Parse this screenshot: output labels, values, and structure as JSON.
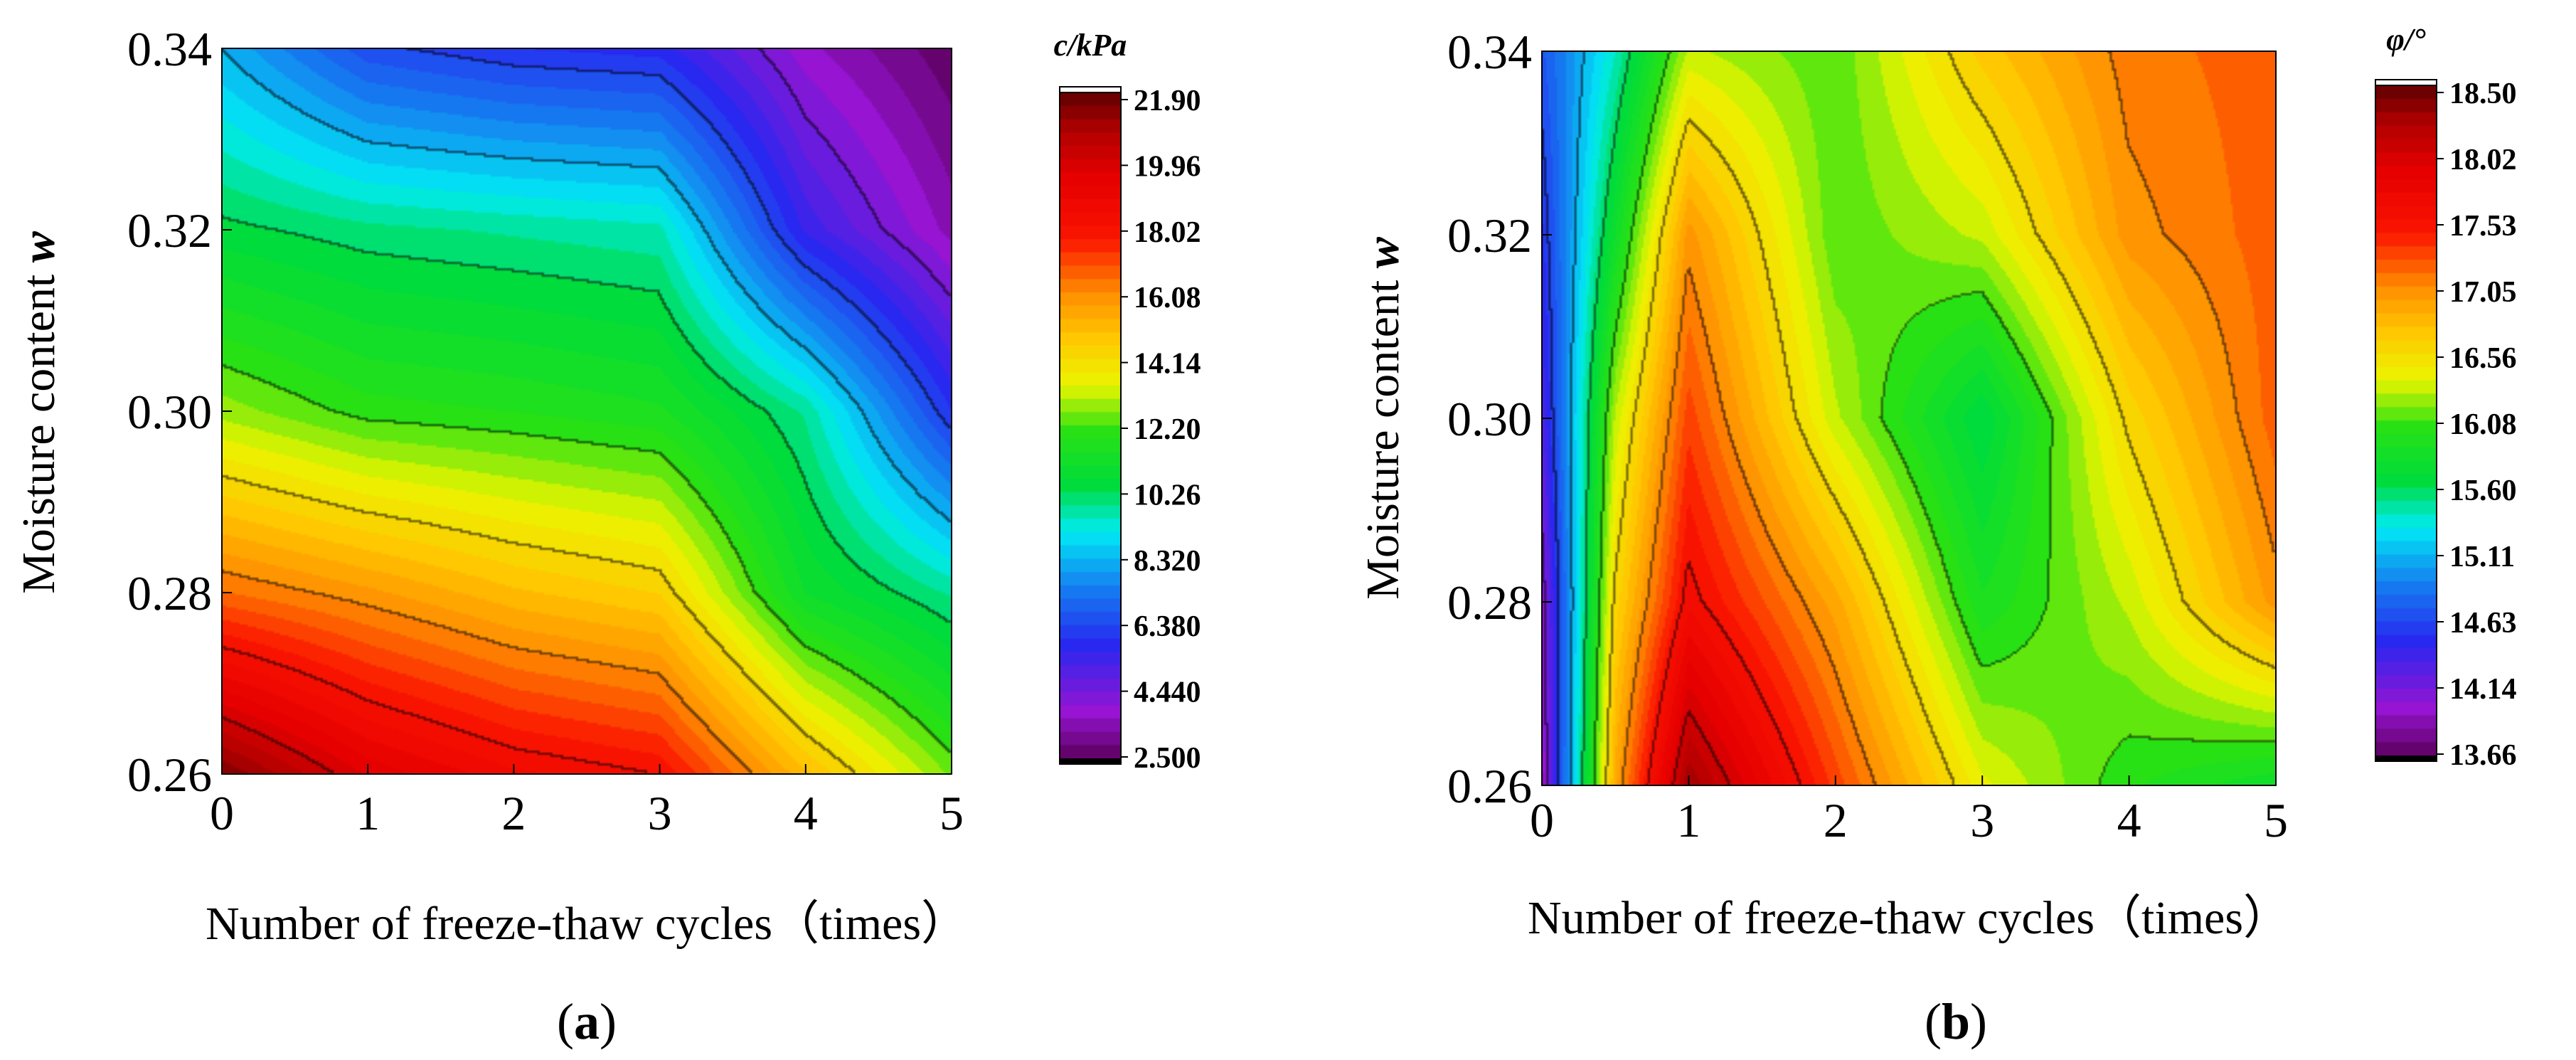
{
  "chart_data": [
    {
      "type": "heatmap",
      "panel_label": "a",
      "xlabel": "Number of freeze-thaw cycles（times）",
      "ylabel": "Moisture content",
      "ylabel_var": "w",
      "colorbar_title": "c/kPa",
      "x_ticks": [
        "0",
        "1",
        "2",
        "3",
        "4",
        "5"
      ],
      "y_ticks": [
        "0.26",
        "0.28",
        "0.30",
        "0.32",
        "0.34"
      ],
      "xlim": [
        0,
        5
      ],
      "ylim": [
        0.26,
        0.34
      ],
      "colorbar_ticks": [
        "21.90",
        "19.96",
        "18.02",
        "16.08",
        "14.14",
        "12.20",
        "10.26",
        "8.320",
        "6.380",
        "4.440",
        "2.500"
      ],
      "zlim": [
        2.5,
        21.9
      ],
      "x": [
        0,
        1,
        2,
        3,
        4,
        5
      ],
      "y": [
        0.26,
        0.28,
        0.3,
        0.32,
        0.34
      ],
      "z": [
        [
          21.5,
          19.5,
          18.5,
          18.0,
          15.0,
          12.5
        ],
        [
          16.5,
          15.8,
          15.0,
          14.5,
          11.0,
          9.8
        ],
        [
          12.8,
          12.0,
          11.8,
          11.5,
          9.8,
          6.0
        ],
        [
          10.4,
          10.0,
          9.8,
          9.6,
          5.5,
          3.5
        ],
        [
          8.3,
          6.5,
          6.0,
          5.8,
          3.8,
          2.6
        ]
      ]
    },
    {
      "type": "heatmap",
      "panel_label": "b",
      "xlabel": "Number of freeze-thaw cycles（times）",
      "ylabel": "Moisture content",
      "ylabel_var": "w",
      "colorbar_title": "φ/°",
      "x_ticks": [
        "0",
        "1",
        "2",
        "3",
        "4",
        "5"
      ],
      "y_ticks": [
        "0.26",
        "0.28",
        "0.30",
        "0.32",
        "0.34"
      ],
      "xlim": [
        0,
        5
      ],
      "ylim": [
        0.26,
        0.34
      ],
      "colorbar_ticks": [
        "18.50",
        "18.02",
        "17.53",
        "17.05",
        "16.56",
        "16.08",
        "15.60",
        "15.11",
        "14.63",
        "14.14",
        "13.66"
      ],
      "zlim": [
        13.66,
        18.5
      ],
      "x": [
        0,
        0.5,
        1,
        2,
        3,
        4,
        5
      ],
      "y": [
        0.26,
        0.28,
        0.3,
        0.32,
        0.34
      ],
      "z": [
        [
          13.9,
          16.9,
          18.3,
          17.3,
          16.4,
          16.0,
          15.8
        ],
        [
          14.0,
          16.6,
          17.6,
          16.9,
          15.9,
          16.3,
          17.0
        ],
        [
          14.3,
          16.3,
          17.3,
          16.3,
          15.6,
          16.6,
          17.2
        ],
        [
          14.5,
          15.8,
          17.0,
          16.1,
          16.3,
          17.0,
          17.2
        ],
        [
          14.7,
          15.4,
          16.3,
          16.1,
          16.7,
          17.1,
          17.2
        ]
      ]
    }
  ]
}
